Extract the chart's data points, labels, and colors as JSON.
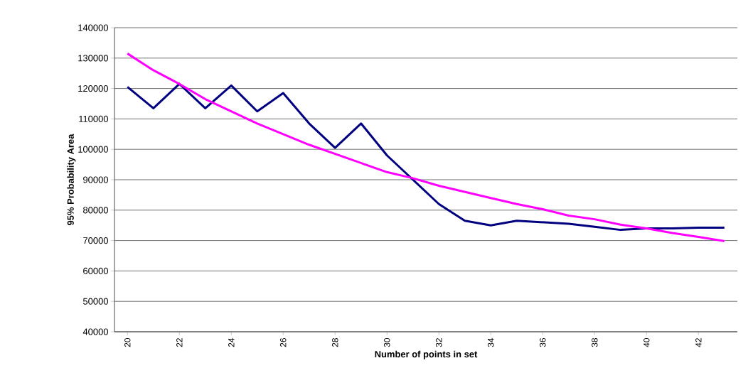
{
  "chart_data": {
    "type": "line",
    "xlabel": "Number of points in set",
    "ylabel": "95% Probability Area",
    "categories": [
      "20",
      null,
      "22",
      null,
      "24",
      null,
      "26",
      null,
      "28",
      null,
      "30",
      null,
      "32",
      null,
      "34",
      null,
      "36",
      null,
      "38",
      null,
      "40",
      null,
      "42",
      null
    ],
    "series": [
      {
        "color": "#000080",
        "values": [
          120500,
          113500,
          121500,
          113500,
          121000,
          112500,
          118500,
          108500,
          100500,
          108500,
          98000,
          90000,
          82000,
          76500,
          75000,
          76500,
          76000,
          75500,
          74500,
          73500,
          74000,
          74000,
          74200,
          74200
        ]
      },
      {
        "color": "#ff00ff",
        "values": [
          131500,
          126000,
          121500,
          116500,
          112500,
          108500,
          105000,
          101500,
          98500,
          95500,
          92500,
          90500,
          88000,
          86000,
          84000,
          82000,
          80300,
          78200,
          77000,
          75200,
          74000,
          72500,
          71200,
          69800
        ]
      }
    ],
    "ylim": [
      40000,
      140000
    ],
    "yticks": [
      40000,
      50000,
      60000,
      70000,
      80000,
      90000,
      100000,
      110000,
      120000,
      130000,
      140000
    ],
    "grid": "y",
    "marker": "none",
    "line_style": "solid"
  }
}
